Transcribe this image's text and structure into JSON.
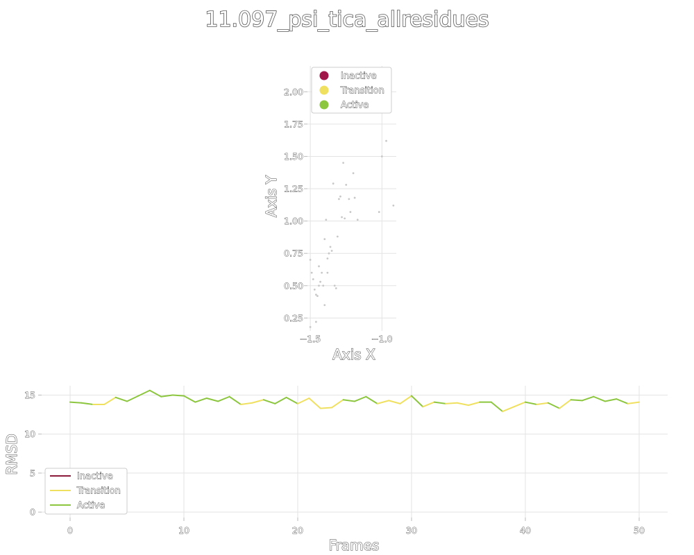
{
  "chart_data": [
    {
      "type": "scatter",
      "title": "11.097_psi_tica_allresidues",
      "xlabel": "Axis X",
      "ylabel": "Axis Y",
      "xlim": [
        -1.52,
        -0.9
      ],
      "ylim": [
        0.15,
        2.2
      ],
      "xticks": [
        -1.5,
        -1.0
      ],
      "xtick_labels": [
        "−1.5",
        "−1.0"
      ],
      "yticks": [
        0.25,
        0.5,
        0.75,
        1.0,
        1.25,
        1.5,
        1.75,
        2.0
      ],
      "ytick_labels": [
        "0.25",
        "0.50",
        "0.75",
        "1.00",
        "1.25",
        "1.50",
        "1.75",
        "2.00"
      ],
      "grid": true,
      "legend_placement": "top-right",
      "legend": [
        {
          "name": "Inactive",
          "color": "#a0174a"
        },
        {
          "name": "Transition",
          "color": "#f0e060"
        },
        {
          "name": "Active",
          "color": "#8cc63f"
        }
      ],
      "point_color": "#c8c8c8",
      "points": [
        {
          "x": -1.5,
          "y": 0.7
        },
        {
          "x": -1.49,
          "y": 0.6
        },
        {
          "x": -1.48,
          "y": 0.55
        },
        {
          "x": -1.47,
          "y": 0.47
        },
        {
          "x": -1.46,
          "y": 0.43
        },
        {
          "x": -1.45,
          "y": 0.42
        },
        {
          "x": -1.44,
          "y": 0.5
        },
        {
          "x": -1.43,
          "y": 0.53
        },
        {
          "x": -1.42,
          "y": 0.6
        },
        {
          "x": -1.41,
          "y": 0.5
        },
        {
          "x": -1.4,
          "y": 0.35
        },
        {
          "x": -1.4,
          "y": 0.86
        },
        {
          "x": -1.39,
          "y": 1.01
        },
        {
          "x": -1.38,
          "y": 0.71
        },
        {
          "x": -1.37,
          "y": 0.75
        },
        {
          "x": -1.36,
          "y": 0.8
        },
        {
          "x": -1.35,
          "y": 0.77
        },
        {
          "x": -1.34,
          "y": 1.29
        },
        {
          "x": -1.33,
          "y": 0.5
        },
        {
          "x": -1.32,
          "y": 0.48
        },
        {
          "x": -1.31,
          "y": 0.88
        },
        {
          "x": -1.3,
          "y": 1.17
        },
        {
          "x": -1.29,
          "y": 1.19
        },
        {
          "x": -1.28,
          "y": 1.03
        },
        {
          "x": -1.27,
          "y": 1.45
        },
        {
          "x": -1.26,
          "y": 1.02
        },
        {
          "x": -1.25,
          "y": 1.28
        },
        {
          "x": -1.23,
          "y": 1.17
        },
        {
          "x": -1.22,
          "y": 1.07
        },
        {
          "x": -1.2,
          "y": 1.37
        },
        {
          "x": -1.19,
          "y": 1.18
        },
        {
          "x": -1.17,
          "y": 1.01
        },
        {
          "x": -1.02,
          "y": 1.07
        },
        {
          "x": -1.0,
          "y": 1.5
        },
        {
          "x": -0.97,
          "y": 1.62
        },
        {
          "x": -0.92,
          "y": 1.12
        },
        {
          "x": -1.46,
          "y": 0.22
        },
        {
          "x": -1.5,
          "y": 0.18
        },
        {
          "x": -1.44,
          "y": 0.65
        },
        {
          "x": -1.38,
          "y": 0.6
        }
      ]
    },
    {
      "type": "line",
      "xlabel": "Frames",
      "ylabel": "RMSD",
      "xlim": [
        -2.5,
        52.5
      ],
      "ylim": [
        -0.7,
        16.2
      ],
      "xticks": [
        0,
        10,
        20,
        30,
        40,
        50
      ],
      "xtick_labels": [
        "0",
        "10",
        "20",
        "30",
        "40",
        "50"
      ],
      "yticks": [
        0,
        5,
        10,
        15
      ],
      "ytick_labels": [
        "0",
        "5",
        "10",
        "15"
      ],
      "grid": true,
      "legend_placement": "bottom-left",
      "legend": [
        {
          "name": "Inactive",
          "color": "#8b1a3a"
        },
        {
          "name": "Transition",
          "color": "#f0e060"
        },
        {
          "name": "Active",
          "color": "#8cc63f"
        }
      ],
      "x": [
        0,
        1,
        2,
        3,
        4,
        5,
        6,
        7,
        8,
        9,
        10,
        11,
        12,
        13,
        14,
        15,
        16,
        17,
        18,
        19,
        20,
        21,
        22,
        23,
        24,
        25,
        26,
        27,
        28,
        29,
        30,
        31,
        32,
        33,
        34,
        35,
        36,
        37,
        38,
        39,
        40,
        41,
        42,
        43,
        44,
        45,
        46,
        47,
        48,
        49,
        50
      ],
      "values": [
        14.1,
        14.0,
        13.8,
        13.8,
        14.7,
        14.2,
        14.9,
        15.6,
        14.8,
        15.0,
        14.9,
        14.1,
        14.6,
        14.2,
        14.8,
        13.8,
        14.0,
        14.4,
        13.9,
        14.7,
        13.9,
        14.6,
        13.3,
        13.4,
        14.4,
        14.2,
        14.8,
        13.9,
        14.3,
        13.9,
        14.9,
        13.5,
        14.1,
        13.9,
        14.0,
        13.7,
        14.1,
        14.1,
        12.9,
        13.5,
        14.1,
        13.8,
        14.0,
        13.3,
        14.4,
        14.3,
        14.8,
        14.2,
        14.5,
        13.9,
        14.1
      ],
      "states": [
        "A",
        "A",
        "T",
        "T",
        "A",
        "A",
        "A",
        "A",
        "A",
        "A",
        "A",
        "A",
        "A",
        "A",
        "A",
        "T",
        "T",
        "A",
        "A",
        "A",
        "T",
        "T",
        "T",
        "T",
        "A",
        "A",
        "A",
        "T",
        "T",
        "T",
        "A",
        "T",
        "A",
        "T",
        "T",
        "T",
        "A",
        "A",
        "T",
        "T",
        "A",
        "T",
        "A",
        "T",
        "A",
        "A",
        "A",
        "A",
        "A",
        "T",
        "T"
      ]
    }
  ]
}
